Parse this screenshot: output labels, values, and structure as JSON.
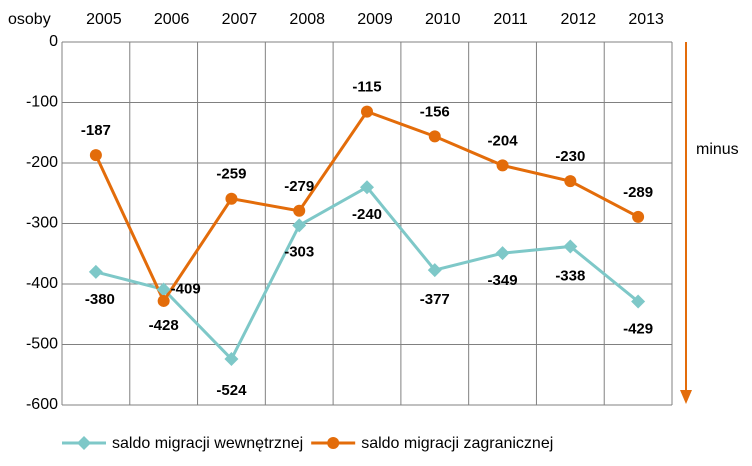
{
  "chart_data": {
    "type": "line",
    "y_label": "osoby",
    "annotation": "minus",
    "categories": [
      "2005",
      "2006",
      "2007",
      "2008",
      "2009",
      "2010",
      "2011",
      "2012",
      "2013"
    ],
    "series": [
      {
        "name": "saldo migracji wewnętrznej",
        "color": "#7ec8c8",
        "marker": "diamond",
        "values": [
          -380,
          -409,
          -524,
          -303,
          -240,
          -377,
          -349,
          -338,
          -429
        ]
      },
      {
        "name": "saldo migracji zagranicznej",
        "color": "#e36c0a",
        "marker": "circle",
        "values": [
          -187,
          -428,
          -259,
          -279,
          -115,
          -156,
          -204,
          -230,
          -289
        ]
      }
    ],
    "ylim": [
      -600,
      0
    ],
    "yticks": [
      0,
      -100,
      -200,
      -300,
      -400,
      -500,
      -600
    ],
    "grid": true
  }
}
